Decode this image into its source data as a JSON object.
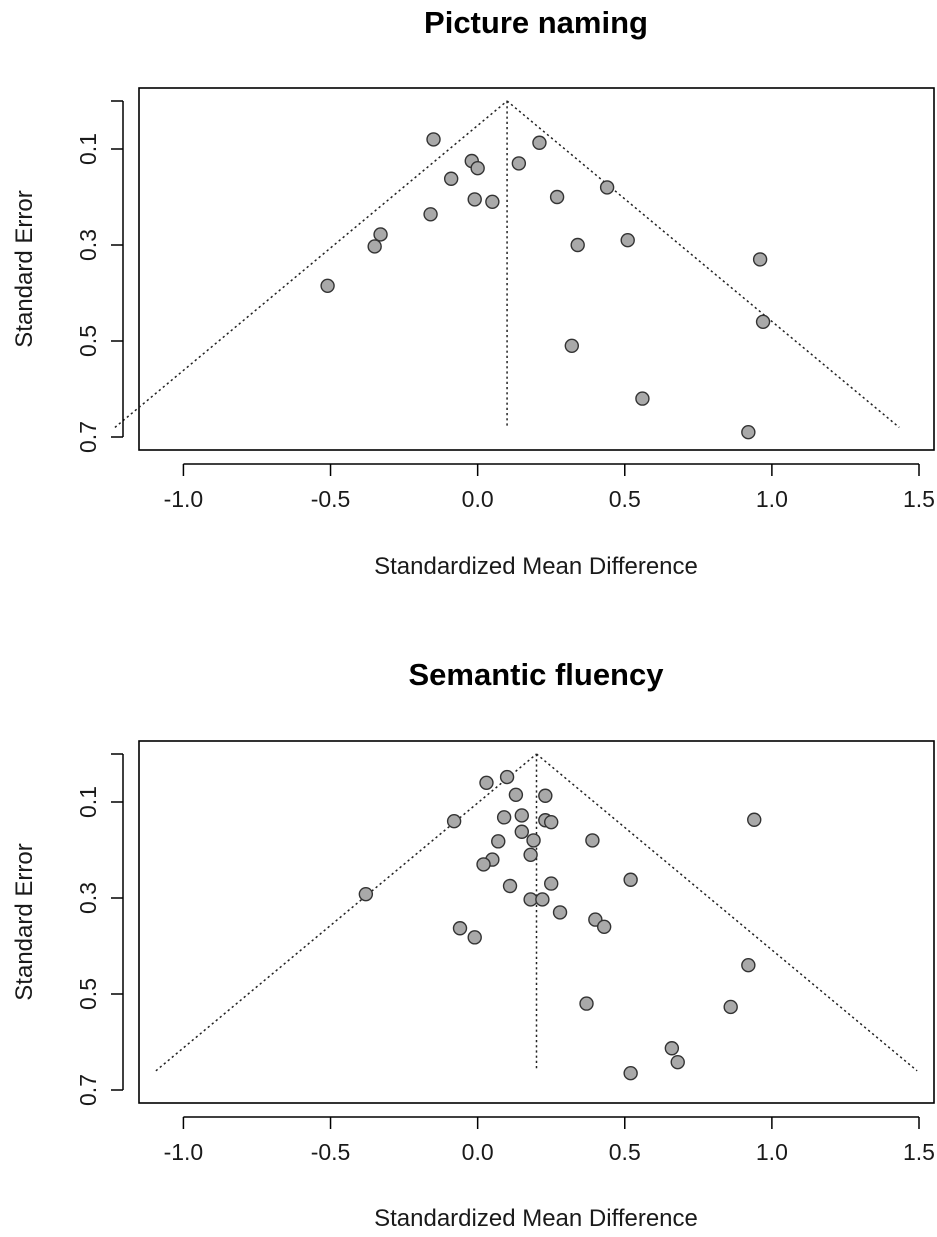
{
  "chart_data": [
    {
      "type": "scatter",
      "subtype": "funnel-plot",
      "title": "Picture naming",
      "xlabel": "Standardized Mean Difference",
      "ylabel": "Standard Error",
      "xlim": [
        -1.1,
        1.5
      ],
      "ylim": [
        0.7,
        0.0
      ],
      "y_reversed": true,
      "xticks": [
        -1.0,
        -0.5,
        0.0,
        0.5,
        1.0,
        1.5
      ],
      "xtick_labels": [
        "-1.0",
        "-0.5",
        "0.0",
        "0.5",
        "1.0",
        "1.5"
      ],
      "yticks": [
        0.1,
        0.3,
        0.5,
        0.7
      ],
      "ytick_labels": [
        "0.1",
        "0.3",
        "0.5",
        "0.7"
      ],
      "funnel": {
        "center": 0.1,
        "se_max": 0.68,
        "z": 1.96
      },
      "point_fill": "#a9a9a9",
      "point_stroke": "#333333",
      "points": [
        {
          "x": -0.15,
          "y": 0.08
        },
        {
          "x": 0.21,
          "y": 0.087
        },
        {
          "x": -0.02,
          "y": 0.125
        },
        {
          "x": 0.0,
          "y": 0.14
        },
        {
          "x": 0.14,
          "y": 0.13
        },
        {
          "x": -0.09,
          "y": 0.162
        },
        {
          "x": 0.44,
          "y": 0.18
        },
        {
          "x": 0.27,
          "y": 0.2
        },
        {
          "x": -0.01,
          "y": 0.205
        },
        {
          "x": 0.05,
          "y": 0.21
        },
        {
          "x": -0.16,
          "y": 0.236
        },
        {
          "x": -0.33,
          "y": 0.278
        },
        {
          "x": -0.35,
          "y": 0.303
        },
        {
          "x": 0.34,
          "y": 0.3
        },
        {
          "x": 0.51,
          "y": 0.29
        },
        {
          "x": 0.96,
          "y": 0.33
        },
        {
          "x": -0.51,
          "y": 0.385
        },
        {
          "x": 0.97,
          "y": 0.46
        },
        {
          "x": 0.32,
          "y": 0.51
        },
        {
          "x": 0.56,
          "y": 0.62
        },
        {
          "x": 0.92,
          "y": 0.69
        }
      ]
    },
    {
      "type": "scatter",
      "subtype": "funnel-plot",
      "title": "Semantic fluency",
      "xlabel": "Standardized Mean Difference",
      "ylabel": "Standard Error",
      "xlim": [
        -1.1,
        1.5
      ],
      "ylim": [
        0.7,
        0.0
      ],
      "y_reversed": true,
      "xticks": [
        -1.0,
        -0.5,
        0.0,
        0.5,
        1.0,
        1.5
      ],
      "xtick_labels": [
        "-1.0",
        "-0.5",
        "0.0",
        "0.5",
        "1.0",
        "1.5"
      ],
      "yticks": [
        0.1,
        0.3,
        0.5,
        0.7
      ],
      "ytick_labels": [
        "0.1",
        "0.3",
        "0.5",
        "0.7"
      ],
      "funnel": {
        "center": 0.2,
        "se_max": 0.66,
        "z": 1.96
      },
      "point_fill": "#a9a9a9",
      "point_stroke": "#333333",
      "points": [
        {
          "x": 0.1,
          "y": 0.048
        },
        {
          "x": 0.03,
          "y": 0.06
        },
        {
          "x": 0.13,
          "y": 0.085
        },
        {
          "x": 0.23,
          "y": 0.087
        },
        {
          "x": 0.09,
          "y": 0.132
        },
        {
          "x": 0.15,
          "y": 0.128
        },
        {
          "x": 0.23,
          "y": 0.138
        },
        {
          "x": 0.25,
          "y": 0.142
        },
        {
          "x": 0.94,
          "y": 0.137
        },
        {
          "x": -0.08,
          "y": 0.14
        },
        {
          "x": 0.15,
          "y": 0.162
        },
        {
          "x": 0.07,
          "y": 0.182
        },
        {
          "x": 0.19,
          "y": 0.18
        },
        {
          "x": 0.39,
          "y": 0.18
        },
        {
          "x": 0.18,
          "y": 0.21
        },
        {
          "x": 0.05,
          "y": 0.22
        },
        {
          "x": 0.02,
          "y": 0.23
        },
        {
          "x": 0.52,
          "y": 0.262
        },
        {
          "x": 0.11,
          "y": 0.275
        },
        {
          "x": 0.25,
          "y": 0.27
        },
        {
          "x": -0.38,
          "y": 0.292
        },
        {
          "x": 0.18,
          "y": 0.303
        },
        {
          "x": 0.22,
          "y": 0.303
        },
        {
          "x": 0.28,
          "y": 0.33
        },
        {
          "x": 0.4,
          "y": 0.345
        },
        {
          "x": 0.43,
          "y": 0.36
        },
        {
          "x": -0.06,
          "y": 0.363
        },
        {
          "x": -0.01,
          "y": 0.382
        },
        {
          "x": 0.92,
          "y": 0.44
        },
        {
          "x": 0.37,
          "y": 0.52
        },
        {
          "x": 0.86,
          "y": 0.527
        },
        {
          "x": 0.66,
          "y": 0.613
        },
        {
          "x": 0.68,
          "y": 0.642
        },
        {
          "x": 0.52,
          "y": 0.665
        }
      ]
    }
  ]
}
